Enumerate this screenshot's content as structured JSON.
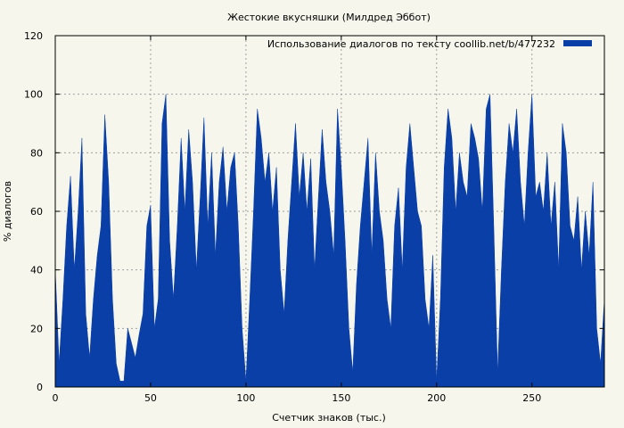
{
  "chart_data": {
    "type": "area",
    "title": "Жестокие вкусняшки (Милдред Эббот)",
    "xlabel": "Счетчик знаков (тыс.)",
    "ylabel": "% диалогов",
    "xlim": [
      0,
      288
    ],
    "ylim": [
      0,
      120
    ],
    "x_ticks": [
      0,
      50,
      100,
      150,
      200,
      250
    ],
    "y_ticks": [
      0,
      20,
      40,
      60,
      80,
      100,
      120
    ],
    "grid": true,
    "legend_position": "top-right",
    "colors": {
      "series": "#0a3fa8",
      "background": "#f6f6ec"
    },
    "series": [
      {
        "name": "Использование диалогов по тексту  coollib.net/b/477232",
        "x": [
          0,
          2,
          4,
          6,
          8,
          10,
          12,
          14,
          16,
          18,
          20,
          22,
          24,
          26,
          28,
          30,
          32,
          34,
          36,
          38,
          40,
          42,
          44,
          46,
          48,
          50,
          52,
          54,
          56,
          58,
          60,
          62,
          64,
          66,
          68,
          70,
          72,
          74,
          76,
          78,
          80,
          82,
          84,
          86,
          88,
          90,
          92,
          94,
          96,
          98,
          100,
          102,
          104,
          106,
          108,
          110,
          112,
          114,
          116,
          118,
          120,
          122,
          124,
          126,
          128,
          130,
          132,
          134,
          136,
          138,
          140,
          142,
          144,
          146,
          148,
          150,
          152,
          154,
          156,
          158,
          160,
          162,
          164,
          166,
          168,
          170,
          172,
          174,
          176,
          178,
          180,
          182,
          184,
          186,
          188,
          190,
          192,
          194,
          196,
          198,
          200,
          202,
          204,
          206,
          208,
          210,
          212,
          214,
          216,
          218,
          220,
          222,
          224,
          226,
          228,
          230,
          232,
          234,
          236,
          238,
          240,
          242,
          244,
          246,
          248,
          250,
          252,
          254,
          256,
          258,
          260,
          262,
          264,
          266,
          268,
          270,
          272,
          274,
          276,
          278,
          280,
          282,
          284,
          286,
          288
        ],
        "values": [
          40,
          8,
          30,
          55,
          72,
          40,
          60,
          85,
          25,
          10,
          30,
          45,
          55,
          93,
          70,
          30,
          8,
          2,
          2,
          20,
          15,
          10,
          18,
          25,
          55,
          62,
          20,
          30,
          90,
          100,
          50,
          30,
          55,
          85,
          60,
          88,
          70,
          40,
          65,
          92,
          55,
          80,
          45,
          70,
          82,
          60,
          75,
          80,
          55,
          20,
          2,
          30,
          60,
          95,
          85,
          70,
          80,
          60,
          75,
          40,
          25,
          50,
          70,
          90,
          65,
          80,
          60,
          78,
          40,
          65,
          88,
          70,
          60,
          45,
          95,
          75,
          50,
          20,
          5,
          35,
          55,
          70,
          85,
          45,
          80,
          60,
          50,
          30,
          20,
          55,
          68,
          40,
          75,
          90,
          75,
          60,
          55,
          30,
          20,
          45,
          2,
          30,
          75,
          95,
          85,
          60,
          80,
          70,
          65,
          90,
          85,
          78,
          60,
          95,
          100,
          55,
          5,
          40,
          70,
          90,
          80,
          95,
          70,
          55,
          80,
          100,
          65,
          70,
          60,
          80,
          55,
          70,
          40,
          90,
          80,
          55,
          50,
          65,
          40,
          60,
          45,
          70,
          20,
          8,
          30
        ]
      }
    ]
  }
}
